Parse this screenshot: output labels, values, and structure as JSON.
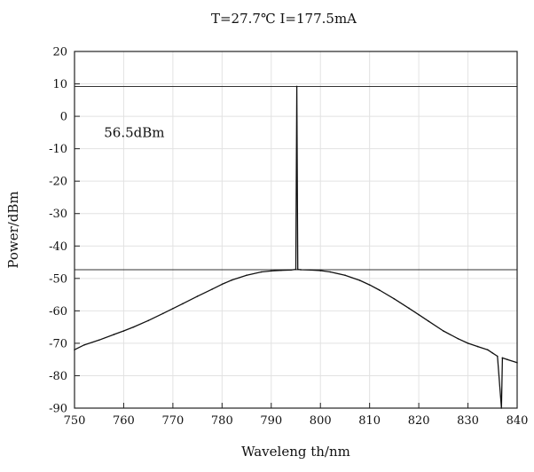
{
  "chart_data": {
    "type": "line",
    "title": "T=27.7℃ I=177.5mA",
    "xlabel": "Waveleng th/nm",
    "ylabel": "Power/dBm",
    "xlim": [
      750,
      840
    ],
    "ylim": [
      -90,
      20
    ],
    "xticks": [
      750,
      760,
      770,
      780,
      790,
      800,
      810,
      820,
      830,
      840
    ],
    "yticks": [
      20,
      10,
      0,
      -10,
      -20,
      -30,
      -40,
      -50,
      -60,
      -70,
      -80,
      -90
    ],
    "grid": true,
    "annotation": "56.5dBm",
    "reference_lines_y": [
      9.2,
      -47.3
    ],
    "peak": {
      "x": 795.2,
      "y": 9.2
    },
    "series": [
      {
        "x": [
          750,
          752,
          755,
          758,
          760,
          762,
          765,
          768,
          770,
          772,
          775,
          778,
          780,
          782,
          785,
          788,
          790,
          792,
          794,
          795,
          795.2,
          795.4,
          796,
          798,
          800,
          802,
          805,
          808,
          810,
          812,
          815,
          818,
          820,
          822,
          825,
          828,
          830,
          832,
          834,
          835,
          836,
          836.8,
          837,
          838,
          840
        ],
        "y": [
          -72,
          -70.5,
          -69,
          -67.3,
          -66.2,
          -65,
          -63,
          -60.8,
          -59.3,
          -57.8,
          -55.5,
          -53.3,
          -51.8,
          -50.5,
          -49,
          -48,
          -47.7,
          -47.5,
          -47.4,
          -47.2,
          9.2,
          -47.2,
          -47.3,
          -47.4,
          -47.6,
          -48,
          -49,
          -50.6,
          -52,
          -53.6,
          -56.3,
          -59.2,
          -61.2,
          -63.2,
          -66.2,
          -68.6,
          -70,
          -71,
          -72,
          -73,
          -74,
          -90,
          -74.5,
          -75,
          -76
        ]
      }
    ]
  }
}
